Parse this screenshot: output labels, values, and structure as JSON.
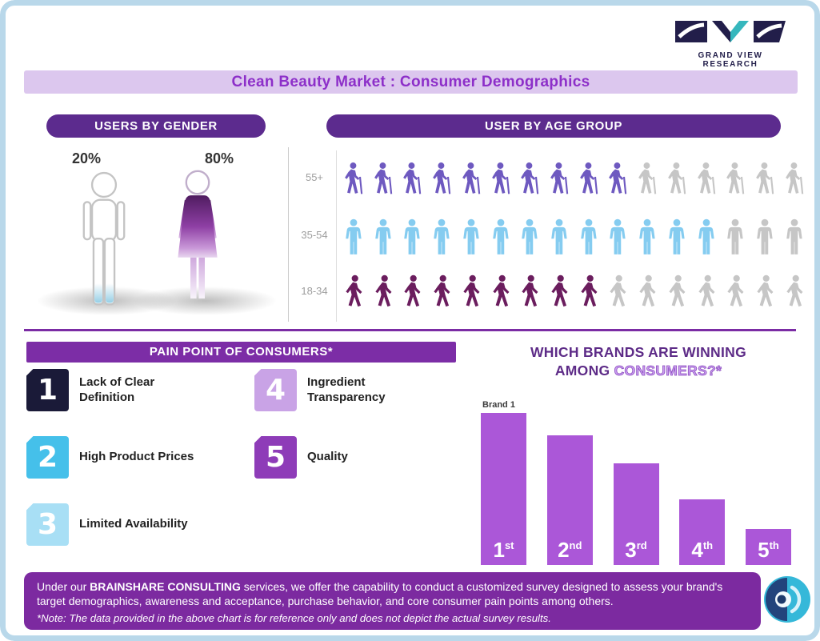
{
  "brand_logo": {
    "text": "GRAND VIEW RESEARCH"
  },
  "title": "Clean Beauty Market : Consumer Demographics",
  "colors": {
    "accent_purple": "#8d2fc9",
    "pill_purple": "#5c2b8e",
    "panel_purple": "#7c2da6",
    "bar_purple": "#ab57d8",
    "border_blue": "#b9d8ea",
    "lavender_bg": "#dcc7ee"
  },
  "gender_section": {
    "header": "USERS BY GENDER",
    "male_pct": "20%",
    "female_pct": "80%"
  },
  "age_section": {
    "header": "USER BY AGE GROUP"
  },
  "pain_points": {
    "header": "PAIN POINT OF CONSUMERS*",
    "items": [
      {
        "num": "1",
        "label": "Lack of Clear Definition",
        "color": "#1a1a38"
      },
      {
        "num": "2",
        "label": "High Product Prices",
        "color": "#45c0ea"
      },
      {
        "num": "3",
        "label": "Limited Availability",
        "color": "#a8dff5"
      },
      {
        "num": "4",
        "label": "Ingredient Transparency",
        "color": "#c9a3e6"
      },
      {
        "num": "5",
        "label": "Quality",
        "color": "#8e3cb8"
      }
    ]
  },
  "brand_section": {
    "title_line1": "WHICH BRANDS ARE WINNING",
    "title_line2_prefix": "AMONG ",
    "title_line2_highlight": "CONSUMERS?*"
  },
  "footer": {
    "text_prefix": "Under our ",
    "text_bold": "BRAINSHARE CONSULTING",
    "text_rest": " services, we offer the capability to conduct a customized survey designed to assess your brand's target demographics, awareness and acceptance, purchase behavior, and core consumer pain points among others.",
    "note": "*Note: The data provided in the above chart is for reference only and does not depict the actual survey results."
  },
  "chart_data": [
    {
      "type": "pictograph",
      "title": "USERS BY GENDER",
      "categories": [
        "Male",
        "Female"
      ],
      "values": [
        20,
        80
      ],
      "unit": "%"
    },
    {
      "type": "pictograph",
      "title": "USER BY AGE GROUP",
      "note": "each row shows 16 person icons; filled icons indicate relative share",
      "gray_color": "#c6c6c6",
      "rows": [
        {
          "label": "55+",
          "filled": 10,
          "total": 16,
          "color": "#6e59c0",
          "icon": "person-cane"
        },
        {
          "label": "35-54",
          "filled": 13,
          "total": 16,
          "color": "#85ccf0",
          "icon": "person-standing"
        },
        {
          "label": "18-34",
          "filled": 9,
          "total": 16,
          "color": "#6b1d5e",
          "icon": "person-walking"
        }
      ]
    },
    {
      "type": "bar",
      "title": "WHICH BRANDS ARE WINNING AMONG CONSUMERS?*",
      "categories": [
        "1st",
        "2nd",
        "3rd",
        "4th",
        "5th"
      ],
      "values": [
        100,
        79,
        62,
        40,
        22
      ],
      "value_note": "relative bar heights; no numeric axis shown",
      "annotation": "Brand 1",
      "color": "#ab57d8",
      "ylim": [
        0,
        100
      ],
      "xlabel": "",
      "ylabel": ""
    }
  ]
}
